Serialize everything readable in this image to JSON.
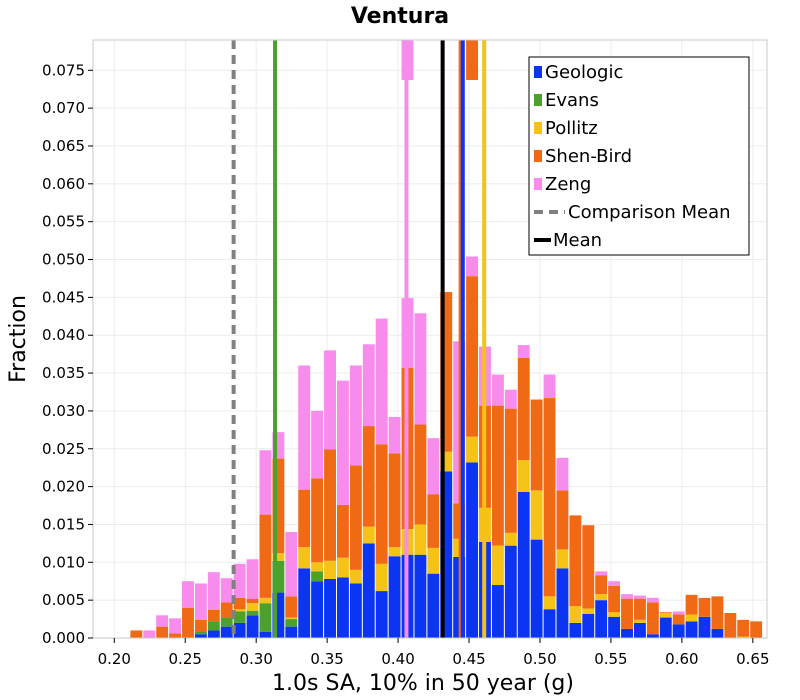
{
  "chart_data": {
    "type": "bar",
    "stacked": true,
    "title": "Ventura",
    "xlabel": "1.0s SA, 10% in 50 year (g)",
    "ylabel": "Fraction",
    "xlim": [
      0.185,
      0.66
    ],
    "ylim": [
      0,
      0.079
    ],
    "xticks": [
      0.2,
      0.25,
      0.3,
      0.35,
      0.4,
      0.45,
      0.5,
      0.55,
      0.6,
      0.65
    ],
    "xtick_labels": [
      "0.20",
      "0.25",
      "0.30",
      "0.35",
      "0.40",
      "0.45",
      "0.50",
      "0.55",
      "0.60",
      "0.65"
    ],
    "yticks": [
      0,
      0.005,
      0.01,
      0.015,
      0.02,
      0.025,
      0.03,
      0.035,
      0.04,
      0.045,
      0.05,
      0.055,
      0.06,
      0.065,
      0.07,
      0.075
    ],
    "ytick_labels": [
      "0.000",
      "0.005",
      "0.010",
      "0.015",
      "0.020",
      "0.025",
      "0.030",
      "0.035",
      "0.040",
      "0.045",
      "0.050",
      "0.055",
      "0.060",
      "0.065",
      "0.070",
      "0.075"
    ],
    "grid": true,
    "legend_position": "top-right",
    "bin_width": 0.0091,
    "bin_centers": [
      0.2159,
      0.225,
      0.2341,
      0.2432,
      0.2523,
      0.2614,
      0.2705,
      0.2796,
      0.2887,
      0.2978,
      0.3069,
      0.316,
      0.3251,
      0.3342,
      0.3433,
      0.3524,
      0.3615,
      0.3706,
      0.3797,
      0.3888,
      0.3979,
      0.407,
      0.4161,
      0.4252,
      0.4343,
      0.4434,
      0.4525,
      0.4616,
      0.4707,
      0.4798,
      0.4889,
      0.498,
      0.5071,
      0.5162,
      0.5253,
      0.5344,
      0.5435,
      0.5526,
      0.5617,
      0.5708,
      0.5799,
      0.589,
      0.5981,
      0.6072,
      0.6163,
      0.6254,
      0.6345,
      0.6436,
      0.6527
    ],
    "series": [
      {
        "name": "Geologic",
        "color": "#0b35f2",
        "values": [
          0,
          0,
          0,
          0,
          0,
          0.0005,
          0.001,
          0.0015,
          0.002,
          0.003,
          0.0008,
          0.006,
          0.0015,
          0.0092,
          0.0075,
          0.0078,
          0.008,
          0.0072,
          0.0125,
          0.0062,
          0.0108,
          0.011,
          0.011,
          0.0085,
          0.022,
          0.0107,
          0.0232,
          0.0127,
          0.007,
          0.0122,
          0.0193,
          0.013,
          0.0038,
          0.0092,
          0.002,
          0.0032,
          0.005,
          0.0028,
          0.0012,
          0.002,
          0.0005,
          0.0027,
          0.0018,
          0.0022,
          0.0028,
          0.0012,
          0,
          0,
          0
        ]
      },
      {
        "name": "Evans",
        "color": "#4ca02c",
        "values": [
          0,
          0,
          0,
          0,
          0,
          0.0004,
          0.0012,
          0.0012,
          0.0015,
          0.0006,
          0.0038,
          0.0042,
          0.001,
          0,
          0.0013,
          0,
          0,
          0,
          0,
          0,
          0,
          0,
          0,
          0,
          0,
          0,
          0,
          0,
          0,
          0,
          0,
          0,
          0,
          0,
          0,
          0,
          0,
          0,
          0,
          0,
          0,
          0,
          0,
          0,
          0,
          0,
          0,
          0,
          0
        ]
      },
      {
        "name": "Pollitz",
        "color": "#f5c315",
        "values": [
          0,
          0,
          0,
          0,
          0,
          0,
          0,
          0,
          0.0003,
          0.001,
          0.0007,
          0.001,
          0.0002,
          0.0028,
          0.0012,
          0.0024,
          0.0026,
          0.0018,
          0.0022,
          0.0036,
          0.0012,
          0.0034,
          0.004,
          0.0034,
          0.0026,
          0.0024,
          0.0034,
          0.0045,
          0.0052,
          0.0017,
          0.0042,
          0.0065,
          0.0017,
          0.0025,
          0.0022,
          0.0007,
          0.0008,
          0.0006,
          0,
          0.0004,
          0,
          0.0006,
          0,
          0.0009,
          0,
          0,
          0,
          0.0002,
          0
        ]
      },
      {
        "name": "Shen-Bird",
        "color": "#f06a15",
        "values": [
          0.001,
          0,
          0.0015,
          0.0006,
          0.004,
          0.0015,
          0.0015,
          0.002,
          0.0015,
          0.0006,
          0.011,
          0.0125,
          0.0028,
          0.0076,
          0.0111,
          0.0147,
          0.007,
          0.0138,
          0.0133,
          0.0158,
          0.0124,
          0.0213,
          0.0132,
          0.0071,
          0.0211,
          0.0047,
          0.0212,
          0.0135,
          0.0185,
          0.0164,
          0.0135,
          0.012,
          0.0262,
          0.0078,
          0.012,
          0.011,
          0.0025,
          0.0035,
          0.004,
          0.0028,
          0.0042,
          0.0001,
          0.0013,
          0.0026,
          0.0025,
          0.0043,
          0.0033,
          0.0022,
          0.0022
        ]
      },
      {
        "name": "Zeng",
        "color": "#f78cec",
        "values": [
          0,
          0.001,
          0.0015,
          0.002,
          0.0035,
          0.0048,
          0.005,
          0.0032,
          0.0045,
          0.0052,
          0.0085,
          0.0035,
          0.0085,
          0.0164,
          0.0089,
          0.0131,
          0.0164,
          0.0132,
          0.0108,
          0.0166,
          0.0048,
          0.0092,
          0.0147,
          0.0074,
          0,
          0.0214,
          0.0026,
          0.0078,
          0.0041,
          0.0025,
          0.0017,
          0,
          0.0031,
          0.0043,
          0,
          0,
          0.0005,
          0.0006,
          0.0006,
          0.0004,
          0.0006,
          0,
          0.0004,
          0,
          0,
          0,
          0,
          0,
          0
        ]
      }
    ],
    "overflow_bars": [
      {
        "x": 0.407,
        "series": "Zeng"
      },
      {
        "x": 0.4525,
        "series": "Shen-Bird"
      }
    ],
    "vlines": [
      {
        "name": "Comparison Mean",
        "x": 0.2841,
        "color": "#808080",
        "style": "dashed"
      },
      {
        "name": "Evans",
        "x": 0.3133,
        "color": "#4ca02c",
        "style": "solid"
      },
      {
        "name": "Zeng",
        "x": 0.4059,
        "color": "#f78cec",
        "style": "solid"
      },
      {
        "name": "Mean",
        "x": 0.4314,
        "color": "#000000",
        "style": "solid"
      },
      {
        "name": "Shen-Bird",
        "x": 0.4441,
        "color": "#f06a15",
        "style": "solid"
      },
      {
        "name": "Geologic",
        "x": 0.4456,
        "color": "#0b35f2",
        "style": "solid"
      },
      {
        "name": "Pollitz",
        "x": 0.4607,
        "color": "#f5c315",
        "style": "solid"
      }
    ],
    "legend": [
      {
        "label": "Geologic",
        "color": "#0b35f2",
        "kind": "box"
      },
      {
        "label": "Evans",
        "color": "#4ca02c",
        "kind": "box"
      },
      {
        "label": "Pollitz",
        "color": "#f5c315",
        "kind": "box"
      },
      {
        "label": "Shen-Bird",
        "color": "#f06a15",
        "kind": "box"
      },
      {
        "label": "Zeng",
        "color": "#f78cec",
        "kind": "box"
      },
      {
        "label": "Comparison Mean",
        "color": "#808080",
        "kind": "dashed"
      },
      {
        "label": "Mean",
        "color": "#000000",
        "kind": "line"
      }
    ]
  }
}
